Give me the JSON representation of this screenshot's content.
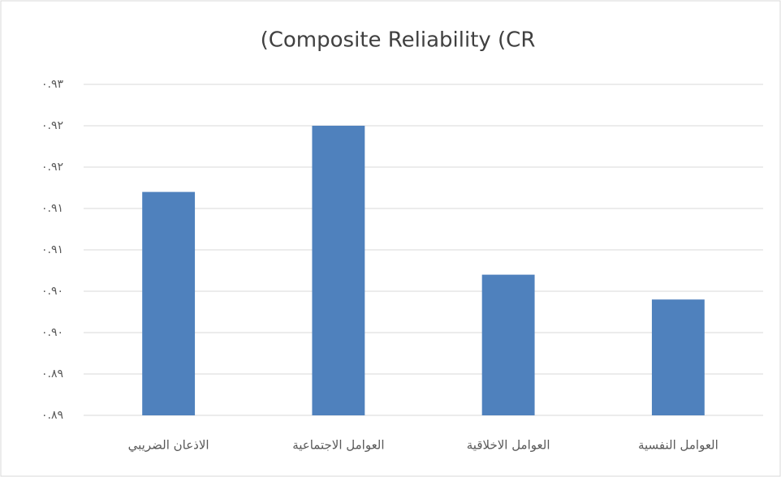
{
  "chart_data": {
    "type": "bar",
    "title": "(Composite Reliability (CR",
    "categories": [
      "الاذعان الضريبي",
      "العوامل الاجتماعية",
      "العوامل الاخلاقية",
      "العوامل النفسية"
    ],
    "values": [
      0.917,
      0.925,
      0.907,
      0.904
    ],
    "color": "#4f81bd",
    "ylim": [
      0.89,
      0.93
    ],
    "yticks": [
      {
        "value": 0.89,
        "label": "٠.٨٩"
      },
      {
        "value": 0.895,
        "label": "٠.٨٩"
      },
      {
        "value": 0.9,
        "label": "٠.٩٠"
      },
      {
        "value": 0.905,
        "label": "٠.٩٠"
      },
      {
        "value": 0.91,
        "label": "٠.٩١"
      },
      {
        "value": 0.915,
        "label": "٠.٩١"
      },
      {
        "value": 0.92,
        "label": "٠.٩٢"
      },
      {
        "value": 0.925,
        "label": "٠.٩٢"
      },
      {
        "value": 0.93,
        "label": "٠.٩٣"
      }
    ],
    "grid": true
  }
}
